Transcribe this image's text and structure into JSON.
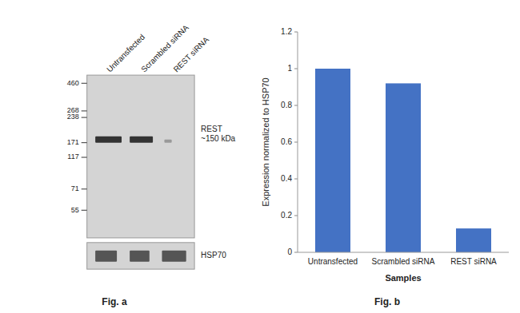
{
  "chart_data": [
    {
      "type": "blot",
      "title": "Fig. a",
      "categories": [
        "Untransfected",
        "Scrambled siRNA",
        "REST siRNA"
      ],
      "annotations": [
        "460",
        "268",
        "238",
        "171",
        "117",
        "71",
        "55",
        "REST\n~150 kDa",
        "HSP70"
      ]
    },
    {
      "type": "bar",
      "title": "Fig. b",
      "categories": [
        "Untransfected",
        "Scrambled siRNA",
        "REST siRNA"
      ],
      "values": [
        1.0,
        0.92,
        0.13
      ],
      "color": "#4472C4",
      "xlabel": "Samples",
      "ylabel": "Expression normalized to HSP70",
      "ylim": [
        0,
        1.2
      ],
      "yticks": [
        0,
        0.2,
        0.4,
        0.6,
        0.8,
        1,
        1.2
      ],
      "grid": false
    }
  ]
}
